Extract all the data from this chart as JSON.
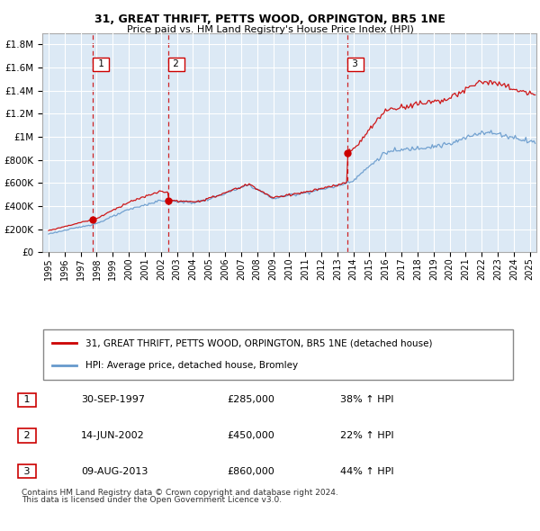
{
  "title1": "31, GREAT THRIFT, PETTS WOOD, ORPINGTON, BR5 1NE",
  "title2": "Price paid vs. HM Land Registry's House Price Index (HPI)",
  "bg_color": "#dce9f5",
  "grid_color": "#ffffff",
  "sale_color": "#cc0000",
  "hpi_color": "#6699cc",
  "sale_label": "31, GREAT THRIFT, PETTS WOOD, ORPINGTON, BR5 1NE (detached house)",
  "hpi_label": "HPI: Average price, detached house, Bromley",
  "purchases": [
    {
      "num": 1,
      "date": "30-SEP-1997",
      "price": 285000,
      "pct": "38%",
      "dir": "↑",
      "year": 1997.75
    },
    {
      "num": 2,
      "date": "14-JUN-2002",
      "price": 450000,
      "pct": "22%",
      "dir": "↑",
      "year": 2002.45
    },
    {
      "num": 3,
      "date": "09-AUG-2013",
      "price": 860000,
      "pct": "44%",
      "dir": "↑",
      "year": 2013.6
    }
  ],
  "footer1": "Contains HM Land Registry data © Crown copyright and database right 2024.",
  "footer2": "This data is licensed under the Open Government Licence v3.0.",
  "ylim": [
    0,
    1900000
  ],
  "yticks": [
    0,
    200000,
    400000,
    600000,
    800000,
    1000000,
    1200000,
    1400000,
    1600000,
    1800000
  ],
  "ytick_labels": [
    "£0",
    "£200K",
    "£400K",
    "£600K",
    "£800K",
    "£1M",
    "£1.2M",
    "£1.4M",
    "£1.6M",
    "£1.8M"
  ],
  "xlim_start": 1994.6,
  "xlim_end": 2025.4,
  "xtick_years": [
    1995,
    1996,
    1997,
    1998,
    1999,
    2000,
    2001,
    2002,
    2003,
    2004,
    2005,
    2006,
    2007,
    2008,
    2009,
    2010,
    2011,
    2012,
    2013,
    2014,
    2015,
    2016,
    2017,
    2018,
    2019,
    2020,
    2021,
    2022,
    2023,
    2024,
    2025
  ]
}
